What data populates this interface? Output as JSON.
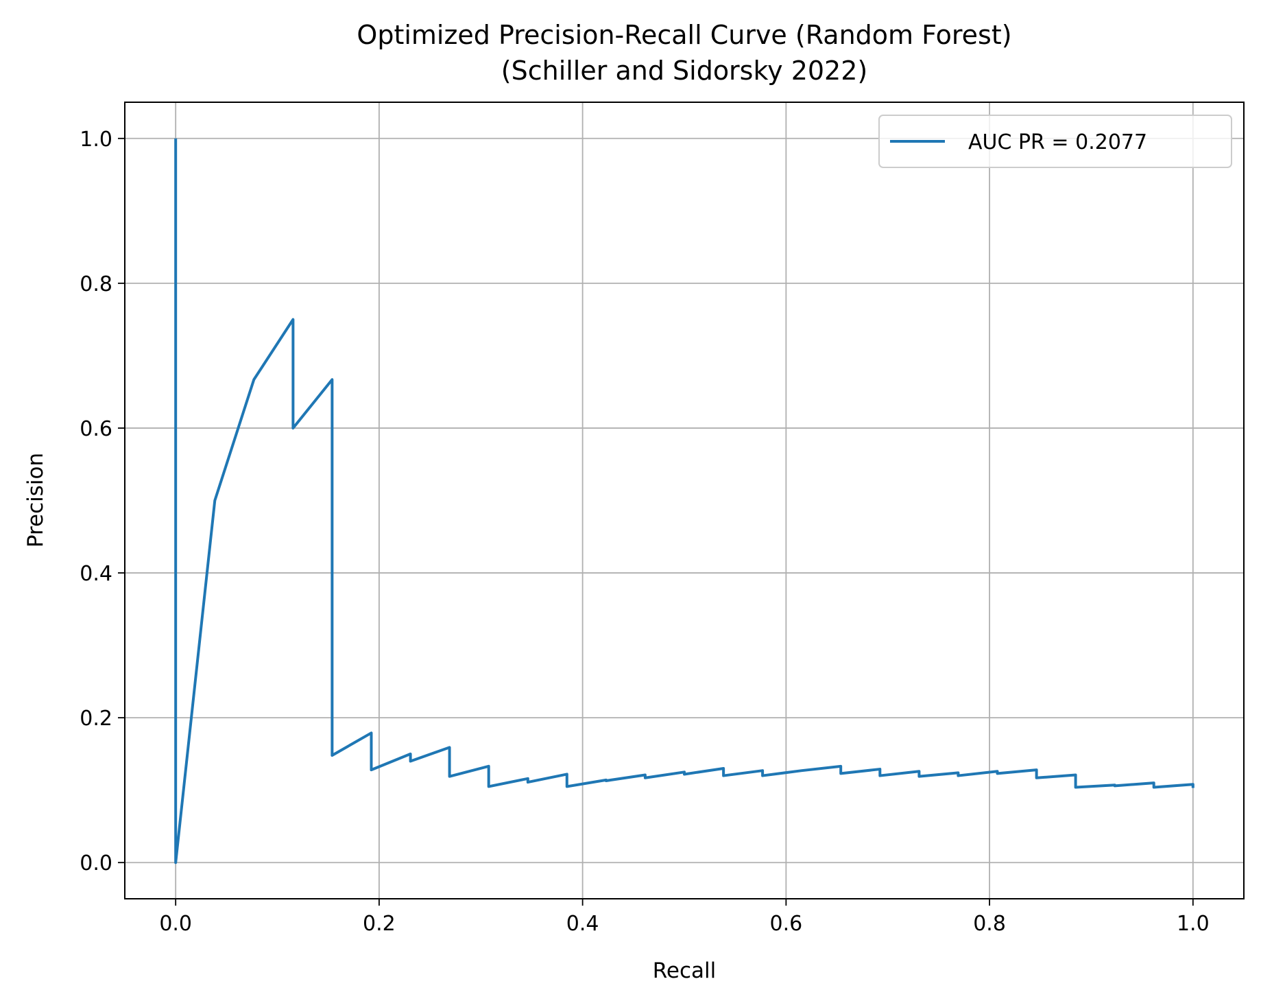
{
  "chart_data": {
    "type": "line",
    "title": "Optimized Precision-Recall Curve (Random Forest)",
    "subtitle": "(Schiller and Sidorsky 2022)",
    "xlabel": "Recall",
    "ylabel": "Precision",
    "xlim": [
      -0.05,
      1.05
    ],
    "ylim": [
      -0.05,
      1.05
    ],
    "xticks": [
      "0.0",
      "0.2",
      "0.4",
      "0.6",
      "0.8",
      "1.0"
    ],
    "yticks": [
      "0.0",
      "0.2",
      "0.4",
      "0.6",
      "0.8",
      "1.0"
    ],
    "grid": true,
    "legend_position": "top-right",
    "series": [
      {
        "name": "AUC PR = 0.2077",
        "color": "#1f77b4",
        "x": [
          0.0,
          0.0,
          0.0385,
          0.0769,
          0.1154,
          0.1154,
          0.1538,
          0.1538,
          0.1923,
          0.1923,
          0.2308,
          0.2308,
          0.2692,
          0.2692,
          0.3077,
          0.3077,
          0.3462,
          0.3462,
          0.3846,
          0.3846,
          0.4231,
          0.4231,
          0.4615,
          0.4615,
          0.5,
          0.5,
          0.5385,
          0.5385,
          0.5769,
          0.5769,
          0.6154,
          0.6154,
          0.6538,
          0.6538,
          0.6923,
          0.6923,
          0.7308,
          0.7308,
          0.7692,
          0.7692,
          0.8077,
          0.8077,
          0.8462,
          0.8462,
          0.8846,
          0.8846,
          0.9231,
          0.9231,
          0.9615,
          0.9615,
          1.0,
          1.0
        ],
        "y": [
          1.0,
          0.0,
          0.5,
          0.667,
          0.75,
          0.6,
          0.667,
          0.148,
          0.179,
          0.128,
          0.15,
          0.14,
          0.159,
          0.119,
          0.133,
          0.105,
          0.116,
          0.111,
          0.122,
          0.105,
          0.114,
          0.113,
          0.121,
          0.117,
          0.125,
          0.122,
          0.13,
          0.12,
          0.127,
          0.12,
          0.127,
          0.127,
          0.133,
          0.123,
          0.129,
          0.12,
          0.126,
          0.119,
          0.124,
          0.12,
          0.126,
          0.123,
          0.128,
          0.117,
          0.121,
          0.104,
          0.107,
          0.106,
          0.11,
          0.104,
          0.108,
          0.103
        ]
      }
    ]
  }
}
